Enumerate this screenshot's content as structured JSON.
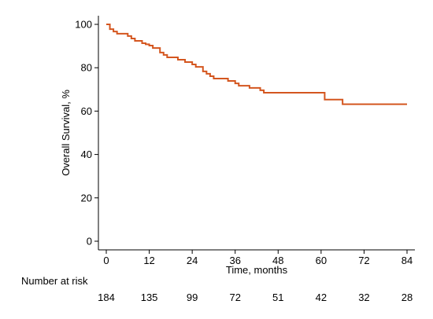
{
  "chart_data": {
    "type": "line",
    "title": "",
    "xlabel": "Time, months",
    "ylabel": "Overall Survival, %",
    "xlim": [
      0,
      84
    ],
    "ylim": [
      0,
      100
    ],
    "x_ticks": [
      0,
      12,
      24,
      36,
      48,
      60,
      72,
      84
    ],
    "y_ticks": [
      0,
      20,
      40,
      60,
      80,
      100
    ],
    "grid": false,
    "line_color": "#d4561f",
    "series": [
      {
        "step": true,
        "points": [
          [
            0,
            100
          ],
          [
            1,
            97.8
          ],
          [
            2,
            96.7
          ],
          [
            3,
            95.7
          ],
          [
            6,
            94.6
          ],
          [
            7,
            93.5
          ],
          [
            8,
            92.4
          ],
          [
            10,
            91.3
          ],
          [
            11,
            90.8
          ],
          [
            12,
            90.2
          ],
          [
            13,
            89.1
          ],
          [
            15,
            87.0
          ],
          [
            16,
            85.9
          ],
          [
            17,
            84.8
          ],
          [
            20,
            83.7
          ],
          [
            22,
            82.6
          ],
          [
            24,
            81.5
          ],
          [
            25,
            80.4
          ],
          [
            27,
            78.3
          ],
          [
            28,
            77.2
          ],
          [
            29,
            76.1
          ],
          [
            30,
            75.0
          ],
          [
            34,
            73.9
          ],
          [
            36,
            72.8
          ],
          [
            37,
            71.7
          ],
          [
            40,
            70.7
          ],
          [
            43,
            69.6
          ],
          [
            44,
            68.5
          ],
          [
            61,
            65.3
          ],
          [
            66,
            63.2
          ],
          [
            84,
            63.2
          ]
        ]
      }
    ]
  },
  "risk_table": {
    "title": "Number at risk",
    "times": [
      0,
      12,
      24,
      36,
      48,
      60,
      72,
      84
    ],
    "counts": [
      "184",
      "135",
      "99",
      "72",
      "51",
      "42",
      "32",
      "28"
    ]
  }
}
